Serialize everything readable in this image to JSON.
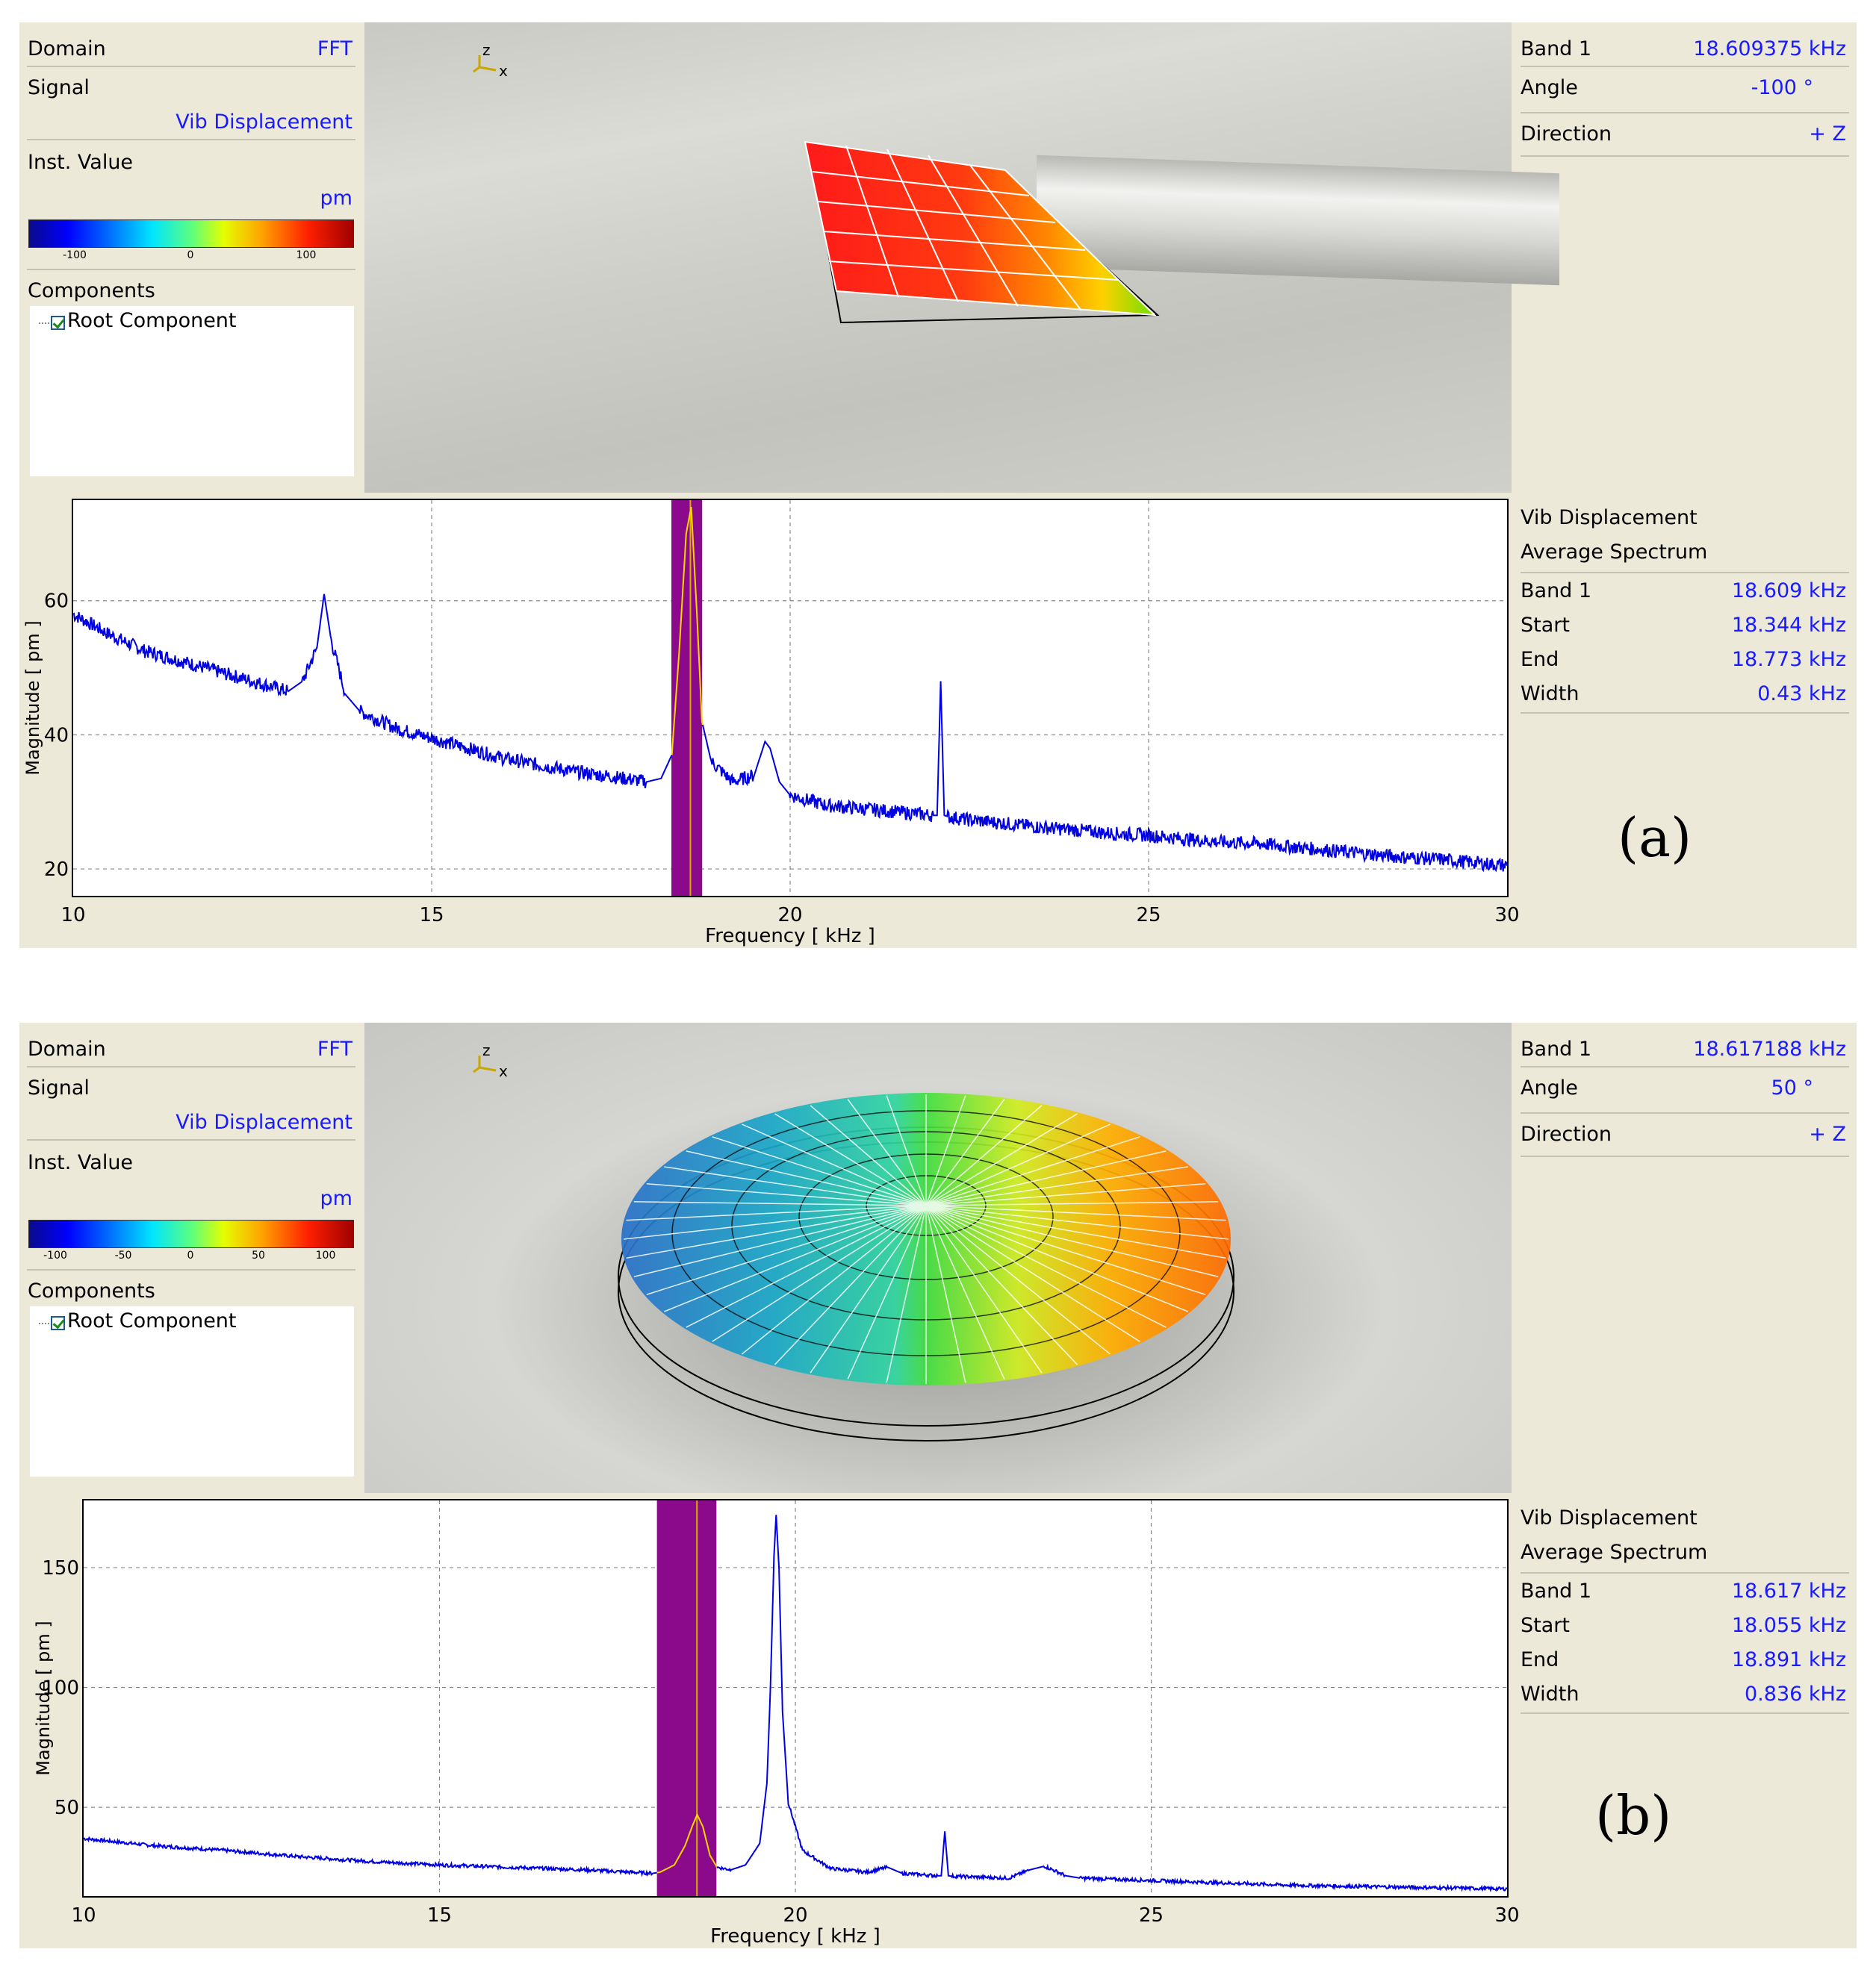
{
  "panels": [
    {
      "caption": "(a)",
      "left": {
        "domain_label": "Domain",
        "domain_value": "FFT",
        "signal_label": "Signal",
        "signal_value": "Vib Displacement",
        "inst_label": "Inst. Value",
        "unit": "pm",
        "colorbar_ticks": [
          "-100",
          "0",
          "100"
        ],
        "components_label": "Components",
        "root_component": "Root Component"
      },
      "axis_indicator": {
        "z": "z",
        "x": "x"
      },
      "right_top": [
        {
          "label": "Band 1",
          "value": "18.609375 kHz"
        },
        {
          "label": "Angle",
          "value": "-100 °"
        },
        {
          "label": "Direction",
          "value": "+ Z"
        }
      ],
      "right_bottom": {
        "title": "Vib Displacement",
        "subtitle": "Average Spectrum",
        "rows": [
          {
            "label": "Band 1",
            "value": "18.609 kHz"
          },
          {
            "label": "Start",
            "value": "18.344 kHz"
          },
          {
            "label": "End",
            "value": "18.773 kHz"
          },
          {
            "label": "Width",
            "value": "0.43 kHz"
          }
        ]
      },
      "chart_data": {
        "type": "line",
        "xlabel": "Frequency [ kHz ]",
        "ylabel": "Magnitude [ pm ]",
        "xlim": [
          10,
          30
        ],
        "ylim": [
          16,
          75
        ],
        "xticks": [
          10,
          15,
          20,
          25,
          30
        ],
        "yticks": [
          20,
          40,
          60
        ],
        "band": {
          "start": 18.344,
          "end": 18.773,
          "center": 18.609
        },
        "series_color": "#0000e0",
        "band_series_color": "#ffd400",
        "band_color": "#8b0a8b",
        "x": [
          10,
          10.5,
          11,
          11.5,
          12,
          12.5,
          13,
          13.2,
          13.4,
          13.5,
          13.6,
          13.8,
          14,
          14.5,
          15,
          15.5,
          16,
          16.5,
          17,
          17.5,
          18,
          18.2,
          18.35,
          18.45,
          18.55,
          18.62,
          18.7,
          18.77,
          18.9,
          19.2,
          19.5,
          19.65,
          19.72,
          19.85,
          20,
          20.5,
          21,
          21.5,
          22,
          22.05,
          22.1,
          22.15,
          22.2,
          22.5,
          23,
          23.5,
          24,
          24.5,
          25,
          25.5,
          26,
          26.5,
          27,
          27.5,
          28,
          28.5,
          29,
          29.5,
          30
        ],
        "values": [
          58,
          55,
          52.5,
          51,
          49.5,
          48,
          46.5,
          48,
          53,
          61,
          54,
          46,
          43.5,
          41,
          39.5,
          38,
          36.5,
          35.5,
          34.5,
          33.8,
          33,
          33.5,
          37,
          52,
          70,
          74,
          58,
          42,
          36,
          33,
          34,
          39,
          38,
          33,
          31,
          29.5,
          29,
          28.5,
          28,
          28,
          48,
          28,
          27.8,
          27.3,
          26.8,
          26.2,
          25.8,
          25.3,
          25,
          24.5,
          24,
          23.8,
          23.3,
          22.8,
          22.3,
          21.8,
          21.5,
          21.0,
          20.5
        ]
      }
    },
    {
      "caption": "(b)",
      "left": {
        "domain_label": "Domain",
        "domain_value": "FFT",
        "signal_label": "Signal",
        "signal_value": "Vib Displacement",
        "inst_label": "Inst. Value",
        "unit": "pm",
        "colorbar_ticks": [
          "-100",
          "-50",
          "0",
          "50",
          "100"
        ],
        "components_label": "Components",
        "root_component": "Root Component"
      },
      "axis_indicator": {
        "z": "z",
        "x": "x"
      },
      "right_top": [
        {
          "label": "Band 1",
          "value": "18.617188 kHz"
        },
        {
          "label": "Angle",
          "value": "50 °"
        },
        {
          "label": "Direction",
          "value": "+ Z"
        }
      ],
      "right_bottom": {
        "title": "Vib Displacement",
        "subtitle": "Average Spectrum",
        "rows": [
          {
            "label": "Band 1",
            "value": "18.617 kHz"
          },
          {
            "label": "Start",
            "value": "18.055 kHz"
          },
          {
            "label": "End",
            "value": "18.891 kHz"
          },
          {
            "label": "Width",
            "value": "0.836 kHz"
          }
        ]
      },
      "chart_data": {
        "type": "line",
        "xlabel": "Frequency [ kHz ]",
        "ylabel": "Magnitude [ pm ]",
        "xlim": [
          10,
          30
        ],
        "ylim": [
          13,
          178
        ],
        "xticks": [
          10,
          15,
          20,
          25,
          30
        ],
        "yticks": [
          50,
          100,
          150
        ],
        "band": {
          "start": 18.055,
          "end": 18.891,
          "center": 18.617
        },
        "series_color": "#0000e0",
        "band_series_color": "#ffd400",
        "band_color": "#8b0a8b",
        "x": [
          10,
          11,
          12,
          13,
          14,
          15,
          16,
          17,
          18,
          18.1,
          18.3,
          18.45,
          18.55,
          18.62,
          18.7,
          18.8,
          18.9,
          19.1,
          19.3,
          19.5,
          19.6,
          19.65,
          19.7,
          19.73,
          19.77,
          19.82,
          19.9,
          20.1,
          20.5,
          21,
          21.3,
          21.5,
          22,
          22.05,
          22.1,
          22.15,
          22.2,
          23,
          23.3,
          23.5,
          23.8,
          24,
          25,
          26,
          27,
          28,
          29,
          30
        ],
        "values": [
          37,
          34,
          32,
          29.5,
          27.5,
          26,
          25,
          24,
          22.5,
          23,
          26,
          34,
          42,
          47,
          42,
          30,
          25,
          24,
          26,
          35,
          60,
          100,
          155,
          172,
          150,
          90,
          52,
          32,
          24.5,
          23,
          25,
          22.5,
          21.5,
          21.5,
          40,
          21.5,
          21.3,
          20.5,
          24,
          25.5,
          21.5,
          20.5,
          19.5,
          18.5,
          17.5,
          17,
          16.5,
          16
        ]
      }
    }
  ]
}
